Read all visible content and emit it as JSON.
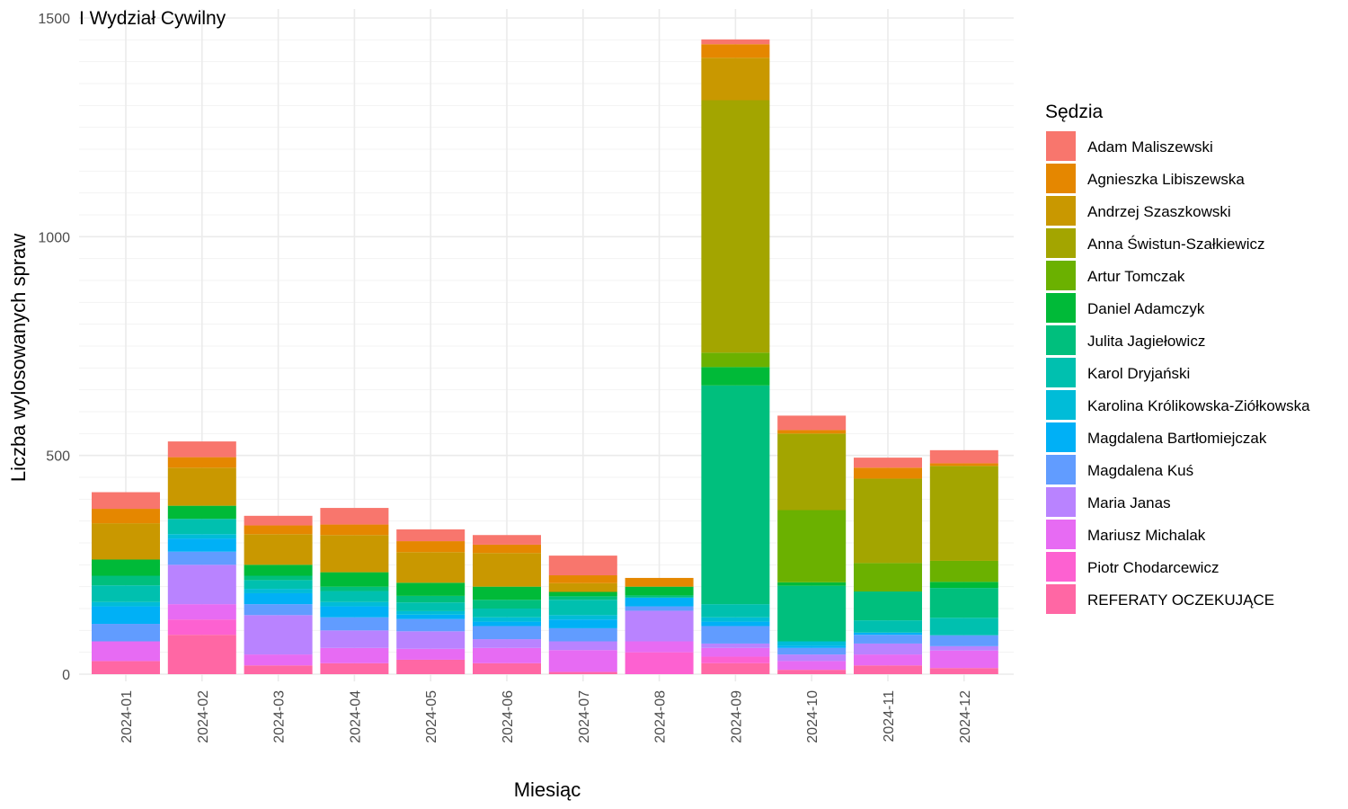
{
  "chart_data": {
    "type": "bar",
    "stacked": true,
    "title": "I Wydział Cywilny",
    "xlabel": "Miesiąc",
    "ylabel": "Liczba wylosowanych spraw",
    "ylim": [
      0,
      1500
    ],
    "yticks": [
      0,
      500,
      1000,
      1500
    ],
    "grid": true,
    "legend_title": "Sędzia",
    "legend_position": "right",
    "categories": [
      "2024-01",
      "2024-02",
      "2024-03",
      "2024-04",
      "2024-05",
      "2024-06",
      "2024-07",
      "2024-08",
      "2024-09",
      "2024-10",
      "2024-11",
      "2024-12"
    ],
    "series": [
      {
        "name": "Adam Maliszewski",
        "color": "#F8766D",
        "values": [
          38,
          36,
          22,
          38,
          27,
          22,
          45,
          0,
          11,
          33,
          23,
          30
        ]
      },
      {
        "name": "Agnieszka Libiszewska",
        "color": "#E58700",
        "values": [
          33,
          24,
          20,
          24,
          25,
          19,
          18,
          20,
          31,
          8,
          25,
          6
        ]
      },
      {
        "name": "Andrzej Szaszkowski",
        "color": "#C99800",
        "values": [
          83,
          87,
          70,
          85,
          70,
          77,
          20,
          0,
          97,
          0,
          0,
          0
        ]
      },
      {
        "name": "Anna Świstun-Szałkiewicz",
        "color": "#A3A500",
        "values": [
          0,
          0,
          0,
          0,
          0,
          0,
          0,
          0,
          577,
          175,
          193,
          217
        ]
      },
      {
        "name": "Artur Tomczak",
        "color": "#6BB100",
        "values": [
          0,
          0,
          0,
          0,
          0,
          0,
          0,
          0,
          33,
          165,
          65,
          48
        ]
      },
      {
        "name": "Daniel Adamczyk",
        "color": "#00BA38",
        "values": [
          37,
          30,
          25,
          33,
          30,
          30,
          10,
          20,
          42,
          8,
          0,
          14
        ]
      },
      {
        "name": "Julita Jagiełowicz",
        "color": "#00BF7D",
        "values": [
          22,
          0,
          10,
          10,
          15,
          20,
          8,
          5,
          500,
          127,
          66,
          68
        ]
      },
      {
        "name": "Karol Dryjański",
        "color": "#00C0AF",
        "values": [
          38,
          35,
          20,
          25,
          20,
          20,
          35,
          0,
          30,
          0,
          28,
          40
        ]
      },
      {
        "name": "Karolina Królikowska-Ziółkowska",
        "color": "#00BCD8",
        "values": [
          10,
          10,
          10,
          10,
          8,
          10,
          10,
          0,
          10,
          10,
          0,
          0
        ]
      },
      {
        "name": "Magdalena Bartłomiejczak",
        "color": "#00B0F6",
        "values": [
          40,
          30,
          25,
          25,
          10,
          10,
          20,
          20,
          10,
          5,
          5,
          0
        ]
      },
      {
        "name": "Magdalena Kuś",
        "color": "#619CFF",
        "values": [
          40,
          30,
          25,
          30,
          28,
          30,
          30,
          10,
          40,
          15,
          20,
          25
        ]
      },
      {
        "name": "Maria Janas",
        "color": "#B983FF",
        "values": [
          0,
          90,
          90,
          40,
          40,
          20,
          20,
          70,
          10,
          15,
          25,
          10
        ]
      },
      {
        "name": "Mariusz Michalak",
        "color": "#E76BF3",
        "values": [
          45,
          35,
          25,
          35,
          25,
          35,
          50,
          25,
          20,
          20,
          25,
          40
        ]
      },
      {
        "name": "Piotr Chodarcewicz",
        "color": "#FD61D1",
        "values": [
          0,
          35,
          0,
          0,
          0,
          0,
          0,
          50,
          15,
          0,
          0,
          0
        ]
      },
      {
        "name": "REFERATY OCZEKUJĄCE",
        "color": "#FF67A4",
        "values": [
          30,
          90,
          20,
          25,
          33,
          25,
          5,
          0,
          25,
          10,
          20,
          14
        ]
      }
    ]
  }
}
